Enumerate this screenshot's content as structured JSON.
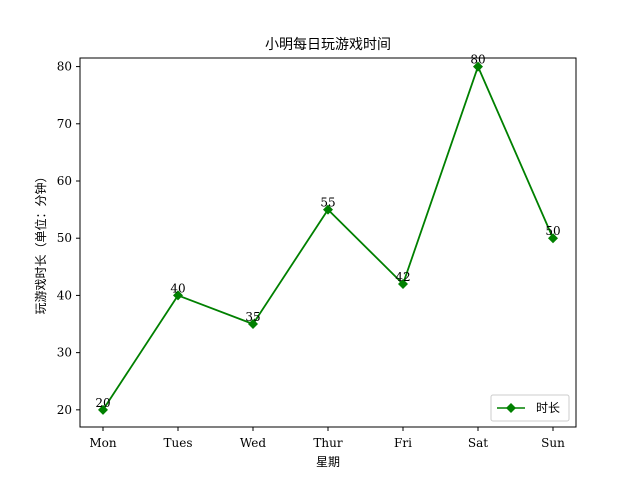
{
  "chart_data": {
    "type": "line",
    "title": "小明每日玩游戏时间",
    "xlabel": "星期",
    "ylabel": "玩游戏时长（单位：分钟）",
    "categories": [
      "Mon",
      "Tues",
      "Wed",
      "Thur",
      "Fri",
      "Sat",
      "Sun"
    ],
    "series": [
      {
        "name": "时长",
        "values": [
          20,
          40,
          35,
          55,
          42,
          80,
          50
        ],
        "color": "#008000",
        "marker": "diamond"
      }
    ],
    "ylim": [
      17,
      81.5
    ],
    "yticks": [
      20,
      30,
      40,
      50,
      60,
      70,
      80
    ],
    "data_labels": [
      "20",
      "40",
      "35",
      "55",
      "42",
      "80",
      "50"
    ],
    "grid": false,
    "legend_position": "lower-right"
  }
}
